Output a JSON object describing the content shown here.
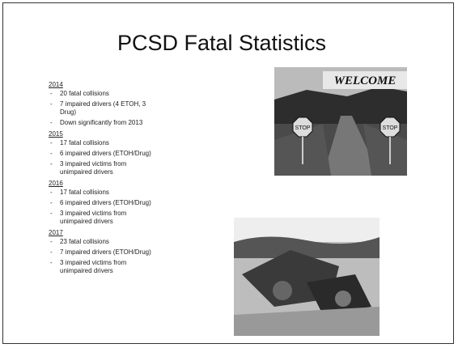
{
  "title": "PCSD Fatal Statistics",
  "sections": [
    {
      "year": "2014",
      "items": [
        "20 fatal collisions",
        "7 impaired drivers (4 ETOH, 3 Drug)",
        "Down significantly from 2013"
      ]
    },
    {
      "year": "2015",
      "items": [
        "17 fatal collisions",
        "6 impaired drivers (ETOH/Drug)",
        "3 impaired victims from unimpaired drivers"
      ]
    },
    {
      "year": "2016",
      "items": [
        "17 fatal collisions",
        "6 impaired drivers (ETOH/Drug)",
        "3 impaired victims from unimpaired drivers"
      ]
    },
    {
      "year": "2017",
      "items": [
        "23 fatal collisions",
        "7 impaired drivers (ETOH/Drug)",
        "3 impaired victims from unimpaired drivers"
      ]
    }
  ],
  "photo_top": {
    "sign": "WELCOME",
    "stop_signs": [
      "STOP",
      "STOP"
    ]
  }
}
